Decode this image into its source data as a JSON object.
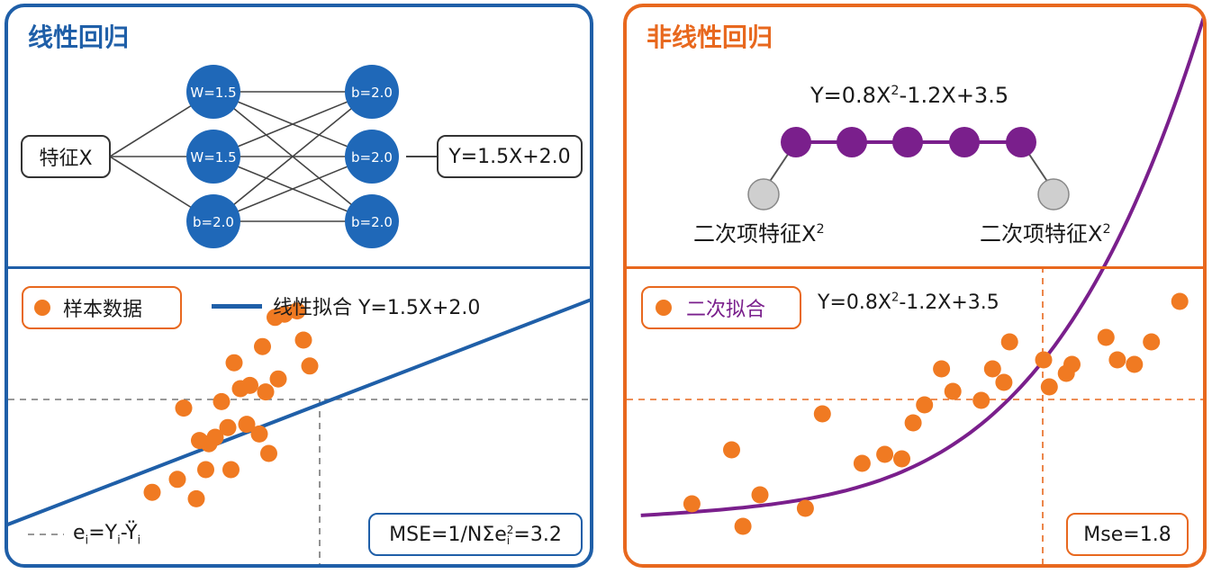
{
  "left": {
    "title": "线性回归",
    "network": {
      "input_label": "特征X",
      "output_label": "Y=1.5X+2.0",
      "layer1": [
        "W=1.5",
        "W=1.5",
        "b=2.0"
      ],
      "layer2": [
        "b=2.0",
        "b=2.0",
        "b=2.0"
      ]
    },
    "legend": {
      "points_label": "样本数据",
      "line_label": "线性拟合 Y=1.5X+2.0"
    },
    "residual": {
      "e": "e",
      "i": "i",
      "eq": "=Y",
      "minus": "-Ÿ"
    },
    "mse": {
      "prefix": "MSE=1/NΣe",
      "sup": "2",
      "sub": "i",
      "suffix": "=3.2"
    },
    "scatter": {
      "x": [
        3.0,
        3.8,
        4.4,
        4.0,
        4.5,
        4.8,
        4.7,
        5.2,
        5.0,
        5.4,
        5.5,
        5.6,
        5.8,
        6.0,
        6.1,
        6.4,
        6.7,
        6.5,
        7.0,
        6.6,
        6.9,
        7.2,
        7.6,
        8.0,
        7.8
      ],
      "y": [
        0.8,
        1.2,
        0.6,
        3.4,
        2.4,
        2.3,
        1.5,
        3.6,
        2.5,
        2.8,
        1.5,
        4.8,
        4.0,
        2.9,
        4.1,
        2.6,
        2.0,
        5.3,
        4.3,
        3.9,
        6.2,
        6.3,
        6.4,
        4.7,
        5.5
      ]
    },
    "fit": {
      "slope": 1.5,
      "intercept": 2.0
    }
  },
  "right": {
    "title": "非线性回归",
    "formula": {
      "a": "Y=0.8X",
      "sup": "2",
      "b": "-1.2X+3.5"
    },
    "chain": {
      "left_label": {
        "text": "二次项特征X",
        "sup": "2"
      },
      "right_label": {
        "text": "二次项特征X",
        "sup": "2"
      }
    },
    "legend": {
      "points_label": "二次拟合",
      "formula": {
        "a": "Y=0.8X",
        "sup": "2",
        "b": "-1.2X+3.5"
      }
    },
    "mse_label": "Mse=1.8",
    "scatter": {
      "x": [
        0.8,
        1.5,
        2.0,
        1.7,
        2.8,
        3.1,
        3.8,
        4.2,
        4.5,
        4.7,
        5.2,
        5.4,
        4.9,
        5.9,
        6.1,
        6.3,
        6.4,
        7.1,
        7.0,
        7.4,
        7.5,
        8.1,
        8.6,
        8.9,
        9.4,
        8.3
      ],
      "y": [
        0.8,
        2.0,
        1.0,
        0.3,
        0.7,
        2.8,
        1.7,
        1.9,
        1.8,
        2.6,
        3.8,
        3.3,
        3.0,
        3.1,
        3.8,
        3.5,
        4.4,
        3.4,
        4.0,
        3.7,
        3.9,
        4.5,
        3.9,
        4.4,
        5.3,
        4.0
      ]
    },
    "fit": {
      "description": "二次拟合曲线"
    }
  },
  "colors": {
    "blue": "#1f5fa8",
    "node_blue": "#1f68b8",
    "orange": "#e8681e",
    "point_orange": "#f07a22",
    "purple": "#7a1f8c",
    "grey_node": "#cfcfcf"
  }
}
